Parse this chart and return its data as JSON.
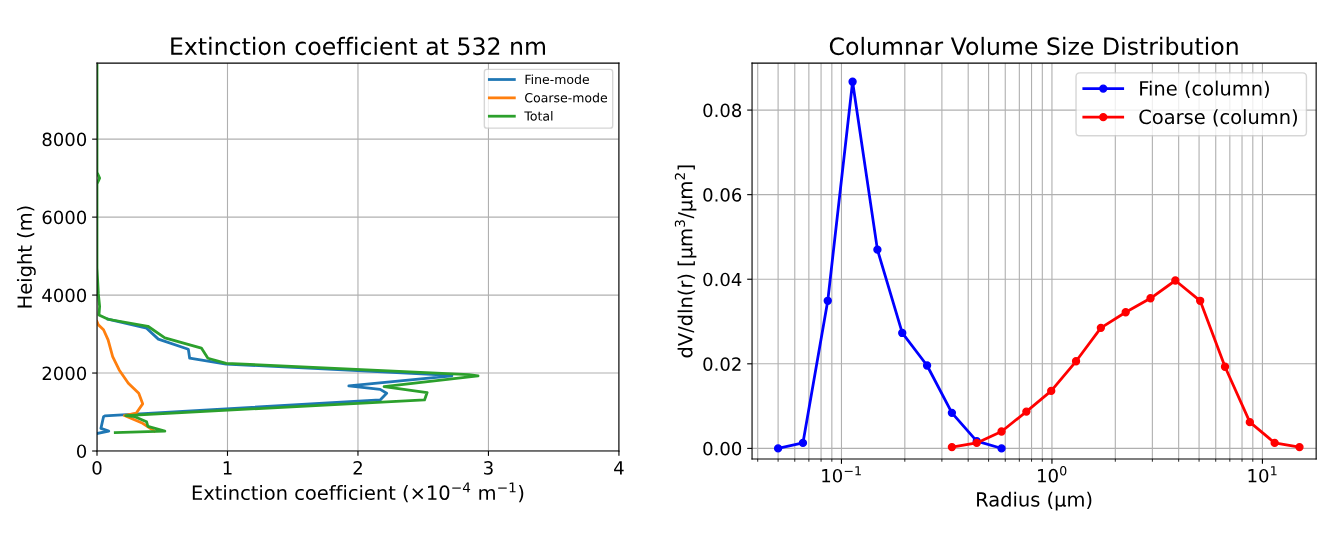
{
  "chart_data": [
    {
      "type": "line",
      "title": "Extinction coefficient at 532 nm",
      "xlabel": "Extinction coefficient (×10$^{−4}$ m$^{−1}$)",
      "ylabel": "Height (m)",
      "xlim": [
        0,
        4
      ],
      "xticks": [
        0,
        1,
        2,
        3,
        4
      ],
      "ylim": [
        0,
        9950
      ],
      "yticks": [
        0,
        2000,
        4000,
        6000,
        8000
      ],
      "grid": true,
      "legend": "top right",
      "series": [
        {
          "name": "Fine-mode",
          "color": "#1f77b4",
          "x": [
            0.0,
            0.09,
            0.03,
            0.05,
            0.06,
            2.17,
            2.22,
            2.17,
            1.93,
            2.72,
            2.6,
            0.99,
            0.71,
            0.7,
            0.47,
            0.38,
            0.085
          ],
          "values": [
            450,
            510,
            580,
            880,
            900,
            1310,
            1480,
            1580,
            1670,
            1930,
            1960,
            2230,
            2380,
            2610,
            2870,
            3150,
            3380
          ]
        },
        {
          "name": "Coarse-mode",
          "color": "#ff7f0e",
          "x": [
            0.44,
            0.35,
            0.21,
            0.3,
            0.35,
            0.32,
            0.24,
            0.17,
            0.12,
            0.085,
            0.05,
            0.01,
            0.0
          ],
          "values": [
            510,
            710,
            910,
            970,
            1210,
            1480,
            1740,
            2080,
            2420,
            2850,
            3110,
            3240,
            3320
          ]
        },
        {
          "name": "Total",
          "color": "#2ca02c",
          "x": [
            0.14,
            0.52,
            0.39,
            0.38,
            0.29,
            0.22,
            2.51,
            2.53,
            2.2,
            2.92,
            2.85,
            0.99,
            0.85,
            0.8,
            0.52,
            0.39,
            0.085,
            0.015,
            0.02,
            0.01,
            0.0,
            0.0,
            0.02,
            0.0,
            0.0
          ],
          "values": [
            470,
            510,
            630,
            750,
            880,
            910,
            1310,
            1500,
            1650,
            1930,
            1960,
            2250,
            2380,
            2640,
            2900,
            3200,
            3380,
            3490,
            3710,
            4050,
            4700,
            6850,
            7000,
            7150,
            9900
          ]
        }
      ]
    },
    {
      "type": "line",
      "title": "Columnar Volume Size Distribution",
      "xlabel": "Radius (μm)",
      "ylabel": "dV/dln(r) [μm$^{3}$/μm$^{2}$]",
      "log": "x",
      "xlim": [
        0.0376,
        18
      ],
      "xticks": [
        {
          "value": 0.1,
          "label": "10$^{−1}$"
        },
        {
          "value": 1,
          "label": "10$^{0}$"
        },
        {
          "value": 10,
          "label": "10$^{1}$"
        }
      ],
      "ylim": [
        -0.0025,
        0.0911
      ],
      "yticks": [
        {
          "value": 0,
          "label": "0.00"
        },
        {
          "value": 0.02,
          "label": "0.02"
        },
        {
          "value": 0.04,
          "label": "0.04"
        },
        {
          "value": 0.06,
          "label": "0.06"
        },
        {
          "value": 0.08,
          "label": "0.08"
        }
      ],
      "grid": true,
      "legend": "top right",
      "marker": "circle",
      "series": [
        {
          "name": "Fine (column)",
          "color": "#0000ff",
          "x": [
            0.05,
            0.065604,
            0.086077,
            0.112939,
            0.148184,
            0.194429,
            0.255105,
            0.334716,
            0.439173,
            0.576227
          ],
          "values": [
            0.0,
            0.0013,
            0.0349,
            0.0867,
            0.047,
            0.0273,
            0.0196,
            0.0084,
            0.0017,
            0.0
          ]
        },
        {
          "name": "Coarse (column)",
          "color": "#ff0000",
          "x": [
            0.334716,
            0.439173,
            0.576227,
            0.756052,
            0.991996,
            1.301571,
            1.707757,
            2.240702,
            2.939966,
            3.857452,
            5.06126,
            6.640745,
            8.713145,
            11.432287,
            15.0
          ],
          "values": [
            0.0003,
            0.0013,
            0.004,
            0.0087,
            0.0136,
            0.0206,
            0.0285,
            0.0322,
            0.0355,
            0.0397,
            0.0349,
            0.0193,
            0.0062,
            0.0013,
            0.0003
          ]
        }
      ]
    }
  ]
}
